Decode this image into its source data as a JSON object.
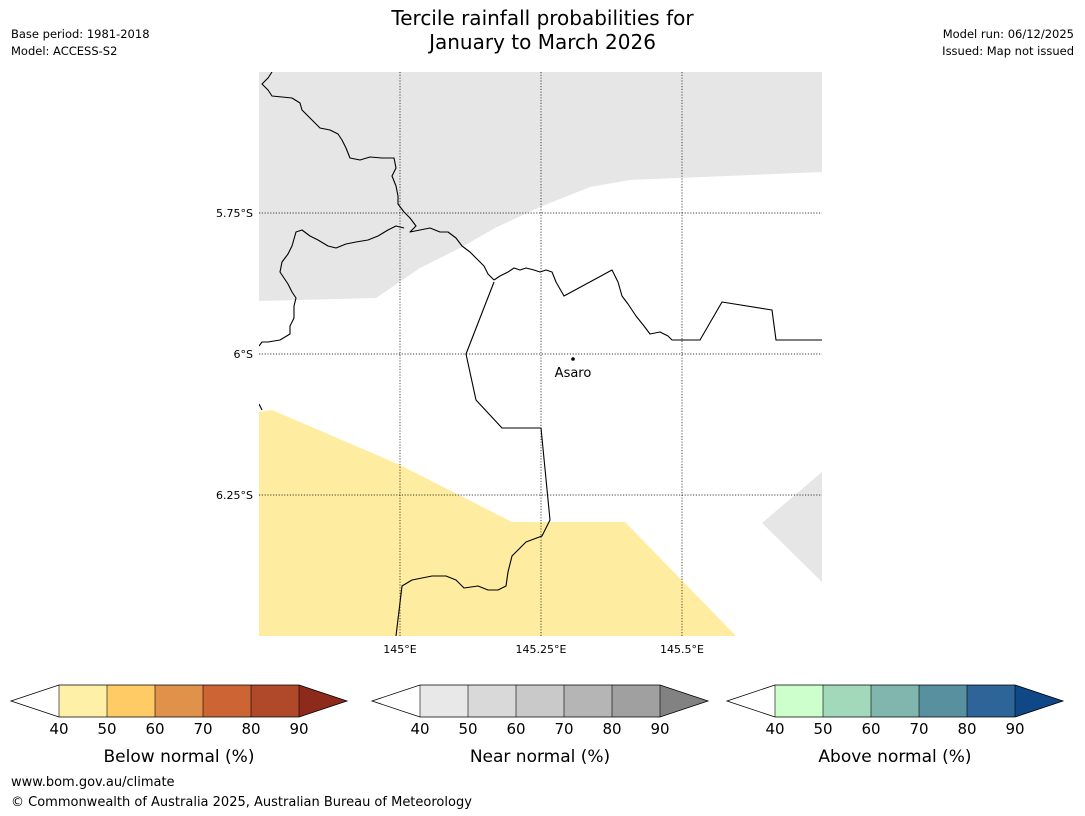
{
  "title": {
    "line1": "Tercile rainfall probabilities for",
    "line2": "January to March 2026"
  },
  "meta": {
    "base_period": "Base period: 1981-2018",
    "model": "Model: ACCESS-S2",
    "model_run": "Model run: 06/12/2025",
    "issued": "Issued: Map not issued"
  },
  "map": {
    "lat_labels": [
      "5.75°S",
      "6°S",
      "6.25°S"
    ],
    "lon_labels": [
      "145°E",
      "145.25°E",
      "145.5°E"
    ],
    "place": "Asaro"
  },
  "legends": [
    {
      "label": "Below normal (%)",
      "ticks": [
        "40",
        "50",
        "60",
        "70",
        "80",
        "90"
      ],
      "colors": [
        "#fff0a8",
        "#fecb65",
        "#e0924a",
        "#cc6533",
        "#b0492a",
        "#8e2a1c"
      ]
    },
    {
      "label": "Near normal (%)",
      "ticks": [
        "40",
        "50",
        "60",
        "70",
        "80",
        "90"
      ],
      "colors": [
        "#e8e8e8",
        "#d9d9d9",
        "#c9c9c9",
        "#b5b5b5",
        "#a0a0a0",
        "#828282"
      ]
    },
    {
      "label": "Above normal (%)",
      "ticks": [
        "40",
        "50",
        "60",
        "70",
        "80",
        "90"
      ],
      "colors": [
        "#ccffcc",
        "#a3d9bb",
        "#80b6ad",
        "#5890a0",
        "#2e6598",
        "#0f4787"
      ]
    }
  ],
  "footer": {
    "url": "www.bom.gov.au/climate",
    "copyright": "© Commonwealth of Australia 2025, Australian Bureau of Meteorology"
  }
}
